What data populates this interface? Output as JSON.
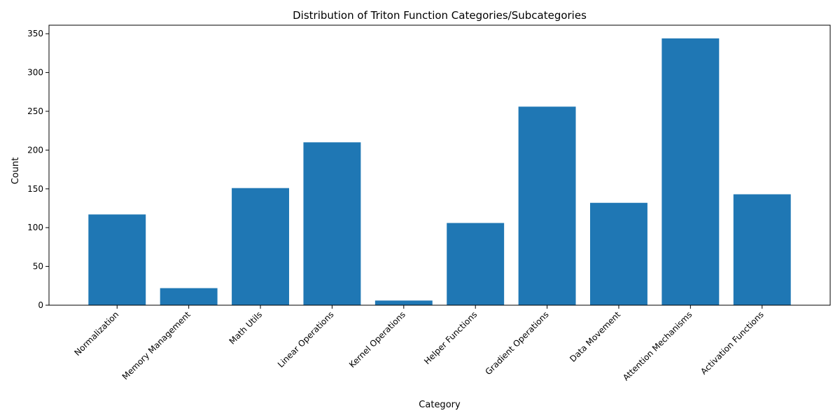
{
  "chart_data": {
    "type": "bar",
    "title": "Distribution of Triton Function Categories/Subcategories",
    "xlabel": "Category",
    "ylabel": "Count",
    "categories": [
      "Normalization",
      "Memory Management",
      "Math Utils",
      "Linear Operations",
      "Kernel Operations",
      "Helper Functions",
      "Gradient Operations",
      "Data Movement",
      "Attention Mechanisms",
      "Activation Functions"
    ],
    "values": [
      117,
      22,
      151,
      210,
      6,
      106,
      256,
      132,
      344,
      143
    ],
    "ylim": [
      0,
      361
    ],
    "yticks": [
      0,
      50,
      100,
      150,
      200,
      250,
      300,
      350
    ],
    "bar_color": "#1f77b4",
    "grid": false,
    "legend": "none"
  }
}
